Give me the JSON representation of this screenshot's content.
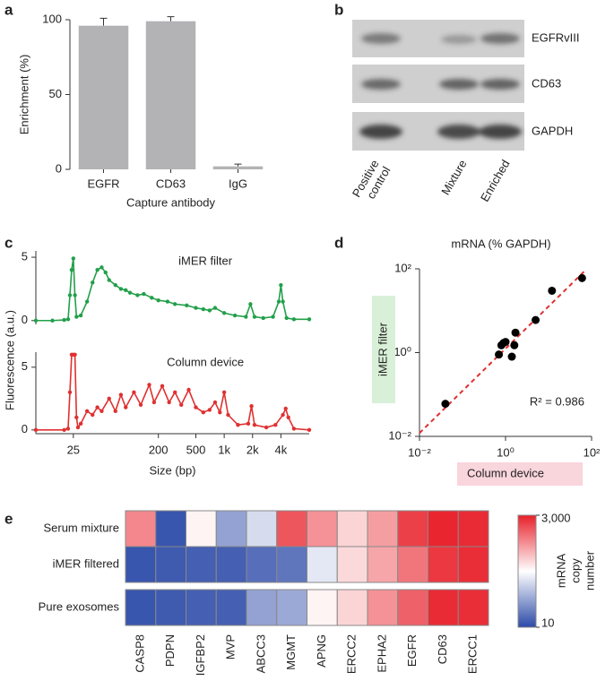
{
  "chart_data": [
    {
      "type": "bar",
      "panel": "a",
      "categories": [
        "EGFR",
        "CD63",
        "IgG"
      ],
      "values": [
        96,
        99,
        2
      ],
      "errors": [
        5,
        3,
        1.5
      ],
      "color": "#b3b3b6",
      "ylim": [
        0,
        100
      ],
      "yticks": [
        0,
        50,
        100
      ],
      "ylabel": "Enrichment (%)",
      "xlabel": "Capture antibody"
    },
    {
      "type": "line",
      "panel": "c",
      "ylabel": "Fluorescence (a.u.)",
      "xscale": "log",
      "xlim": [
        10,
        8000
      ],
      "ylim": [
        -0.3,
        5.5
      ],
      "yticks": [
        0,
        5
      ],
      "series": [
        {
          "name": "iMER filter",
          "color": "#22a04a",
          "x": [
            10,
            15,
            20,
            22,
            23,
            24,
            25,
            26,
            27,
            30,
            35,
            40,
            45,
            50,
            55,
            60,
            70,
            80,
            90,
            100,
            120,
            140,
            170,
            200,
            250,
            300,
            400,
            500,
            600,
            700,
            800,
            1000,
            1300,
            1700,
            1900,
            2100,
            2600,
            3300,
            3800,
            4000,
            4200,
            4600,
            5500,
            8000
          ],
          "values": [
            0,
            0,
            0.05,
            0.1,
            2,
            4,
            4.9,
            2,
            0.3,
            0.4,
            1.5,
            3,
            4,
            4.2,
            3.8,
            3.2,
            2.8,
            2.5,
            2.4,
            2.2,
            2.0,
            2.1,
            1.8,
            1.6,
            1.5,
            1.3,
            1.2,
            1.0,
            0.9,
            0.8,
            1.0,
            0.6,
            0.4,
            0.3,
            1.3,
            0.3,
            0.2,
            0.3,
            1.5,
            2.8,
            1.5,
            0.2,
            0.1,
            0.1
          ]
        }
      ]
    },
    {
      "type": "line",
      "xscale": "log",
      "xlim": [
        10,
        8000
      ],
      "ylim": [
        -0.3,
        6.2
      ],
      "yticks": [
        0,
        5
      ],
      "xticks": [
        25,
        200,
        500,
        {
          "value": 1000,
          "label": "1k"
        },
        {
          "value": 2000,
          "label": "2k"
        },
        {
          "value": 4000,
          "label": "4k"
        }
      ],
      "xlabel": "Size (bp)",
      "series": [
        {
          "name": "Column device",
          "color": "#e03030",
          "x": [
            10,
            20,
            22,
            23,
            24,
            25,
            26,
            27,
            28,
            30,
            35,
            40,
            45,
            50,
            60,
            70,
            80,
            90,
            110,
            130,
            160,
            180,
            220,
            260,
            300,
            350,
            420,
            500,
            600,
            700,
            800,
            900,
            1000,
            1100,
            1400,
            1800,
            1950,
            2100,
            2800,
            3500,
            4200,
            4500,
            4800,
            5500,
            8000
          ],
          "values": [
            0,
            0,
            0.1,
            3,
            6,
            6,
            6,
            1,
            0.2,
            0.5,
            1.5,
            1.2,
            1.8,
            1.5,
            2.5,
            1.5,
            2.8,
            1.8,
            3,
            2,
            3.6,
            2.2,
            3.5,
            2.2,
            3,
            2,
            3.2,
            1.8,
            1.4,
            1.6,
            2.2,
            1.4,
            3,
            1.2,
            0.4,
            0.5,
            1.9,
            0.4,
            0.2,
            0.4,
            1.2,
            1.7,
            1,
            0.1,
            0
          ]
        }
      ]
    },
    {
      "type": "scatter",
      "panel": "d",
      "title": "mRNA (% GAPDH)",
      "xscale": "log",
      "yscale": "log",
      "xlim": [
        0.01,
        100
      ],
      "ylim": [
        0.01,
        100
      ],
      "xticks": [
        {
          "value": 0.01,
          "label": "10⁻²"
        },
        {
          "value": 1,
          "label": "10⁰"
        },
        {
          "value": 100,
          "label": "10²"
        }
      ],
      "yticks": [
        {
          "value": 0.01,
          "label": "10⁻²"
        },
        {
          "value": 1,
          "label": "10⁰"
        },
        {
          "value": 100,
          "label": "10²"
        }
      ],
      "xlabel": "Column device",
      "ylabel": "iMER filter",
      "color": "#000000",
      "x": [
        0.04,
        0.7,
        0.8,
        0.9,
        1.0,
        1.4,
        1.6,
        1.7,
        5,
        12,
        60
      ],
      "values": [
        0.06,
        0.9,
        1.5,
        1.7,
        1.8,
        0.8,
        1.5,
        3,
        6,
        30,
        60
      ],
      "fit": {
        "x": [
          0.01,
          70
        ],
        "y": [
          0.012,
          90
        ],
        "color": "#e03030"
      },
      "annotation": "R² = 0.986"
    },
    {
      "type": "heatmap",
      "panel": "e",
      "rows": [
        "Serum mixture",
        "iMER filtered",
        "Pure exosomes"
      ],
      "columns": [
        "CASP8",
        "PDPN",
        "IGFBP2",
        "MVP",
        "ABCC3",
        "MGMT",
        "APNG",
        "ERCC2",
        "EPHA2",
        "EGFR",
        "CD63",
        "ERCC1"
      ],
      "values": [
        [
          800,
          12,
          200,
          40,
          100,
          1500,
          700,
          300,
          600,
          2000,
          2800,
          2600
        ],
        [
          12,
          13,
          14,
          14,
          18,
          20,
          120,
          280,
          550,
          1000,
          2200,
          2500
        ],
        [
          12,
          13,
          14,
          14,
          40,
          45,
          200,
          300,
          700,
          1300,
          2600,
          2500
        ]
      ],
      "colorscale": {
        "log": true,
        "lim": [
          10,
          3000
        ],
        "ticks": [
          {
            "value": 3000,
            "label": "3,000"
          },
          10
        ],
        "colors": [
          "#2c4aa8",
          "#ffffff",
          "#e8202a"
        ],
        "label": [
          "mRNA",
          "copy",
          "number"
        ]
      }
    }
  ],
  "blot": {
    "panel": "b",
    "rows": [
      "EGFRvIII",
      "CD63",
      "GAPDH"
    ],
    "lanes": [
      [
        "Positive",
        "control"
      ],
      [
        "Mixture"
      ],
      [
        "Enriched"
      ]
    ]
  }
}
